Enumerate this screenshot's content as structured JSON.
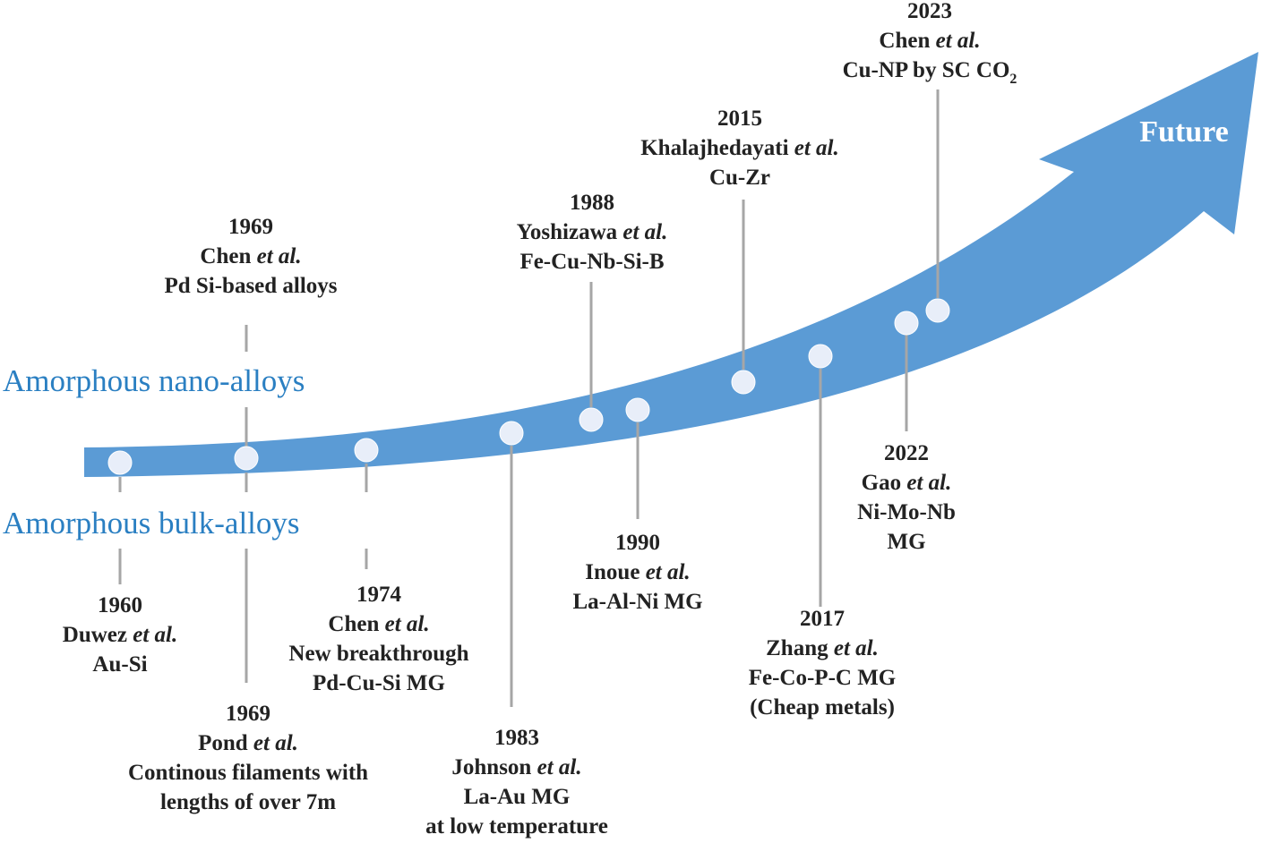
{
  "categories": {
    "nano": "Amorphous nano-alloys",
    "bulk": "Amorphous bulk-alloys"
  },
  "future_label": "Future",
  "colors": {
    "arrow": "#5b9bd5",
    "dot": "#e8eef9",
    "connector": "#a6a6a6",
    "category_text": "#2a7fc2",
    "label_text": "#222222"
  },
  "events": [
    {
      "id": "1960-duwez",
      "side": "below",
      "year": "1960",
      "lines": [
        {
          "segments": [
            {
              "text": "Duwez "
            },
            {
              "text": "et al.",
              "italic": true
            }
          ]
        },
        {
          "segments": [
            {
              "text": "Au-Si"
            }
          ]
        }
      ]
    },
    {
      "id": "1969-chen",
      "side": "above",
      "year": "1969",
      "lines": [
        {
          "segments": [
            {
              "text": "Chen "
            },
            {
              "text": "et al.",
              "italic": true
            }
          ]
        },
        {
          "segments": [
            {
              "text": "Pd Si-based alloys"
            }
          ]
        }
      ]
    },
    {
      "id": "1969-pond",
      "side": "below",
      "year": "1969",
      "lines": [
        {
          "segments": [
            {
              "text": "Pond "
            },
            {
              "text": "et al.",
              "italic": true
            }
          ]
        },
        {
          "segments": [
            {
              "text": "Continous filaments  with"
            }
          ]
        },
        {
          "segments": [
            {
              "text": "lengths of over 7m"
            }
          ]
        }
      ]
    },
    {
      "id": "1974-chen",
      "side": "below",
      "year": "1974",
      "lines": [
        {
          "segments": [
            {
              "text": "Chen "
            },
            {
              "text": "et al.",
              "italic": true
            }
          ]
        },
        {
          "segments": [
            {
              "text": "New breakthrough"
            }
          ]
        },
        {
          "segments": [
            {
              "text": "Pd-Cu-Si MG"
            }
          ]
        }
      ]
    },
    {
      "id": "1983-johnson",
      "side": "below",
      "year": "1983",
      "lines": [
        {
          "segments": [
            {
              "text": "Johnson "
            },
            {
              "text": "et al.",
              "italic": true
            }
          ]
        },
        {
          "segments": [
            {
              "text": "La-Au MG"
            }
          ]
        },
        {
          "segments": [
            {
              "text": "at low temperature"
            }
          ]
        }
      ]
    },
    {
      "id": "1988-yoshizawa",
      "side": "above",
      "year": "1988",
      "lines": [
        {
          "segments": [
            {
              "text": "Yoshizawa "
            },
            {
              "text": "et al.",
              "italic": true
            }
          ]
        },
        {
          "segments": [
            {
              "text": "Fe-Cu-Nb-Si-B"
            }
          ]
        }
      ]
    },
    {
      "id": "1990-inoue",
      "side": "below",
      "year": "1990",
      "lines": [
        {
          "segments": [
            {
              "text": "Inoue "
            },
            {
              "text": "et al.",
              "italic": true
            }
          ]
        },
        {
          "segments": [
            {
              "text": "La-Al-Ni MG"
            }
          ]
        }
      ]
    },
    {
      "id": "2015-khalajhedayati",
      "side": "above",
      "year": "2015",
      "lines": [
        {
          "segments": [
            {
              "text": "Khalajhedayati "
            },
            {
              "text": "et al.",
              "italic": true
            }
          ]
        },
        {
          "segments": [
            {
              "text": "Cu-Zr"
            }
          ]
        }
      ]
    },
    {
      "id": "2017-zhang",
      "side": "below",
      "year": "2017",
      "lines": [
        {
          "segments": [
            {
              "text": "Zhang "
            },
            {
              "text": "et al.",
              "italic": true
            }
          ]
        },
        {
          "segments": [
            {
              "text": "Fe-Co-P-C MG"
            }
          ]
        },
        {
          "segments": [
            {
              "text": "(Cheap metals)"
            }
          ]
        }
      ]
    },
    {
      "id": "2022-gao",
      "side": "below",
      "year": "2022",
      "lines": [
        {
          "segments": [
            {
              "text": "Gao "
            },
            {
              "text": "et al.",
              "italic": true
            }
          ]
        },
        {
          "segments": [
            {
              "text": "Ni-Mo-Nb"
            }
          ]
        },
        {
          "segments": [
            {
              "text": "MG"
            }
          ]
        }
      ]
    },
    {
      "id": "2023-chen",
      "side": "above",
      "year": "2023",
      "lines": [
        {
          "segments": [
            {
              "text": "Chen "
            },
            {
              "text": "et al.",
              "italic": true
            }
          ]
        },
        {
          "segments": [
            {
              "text": "Cu-NP by SC CO"
            },
            {
              "text": "2",
              "sub": true
            }
          ]
        }
      ]
    }
  ]
}
